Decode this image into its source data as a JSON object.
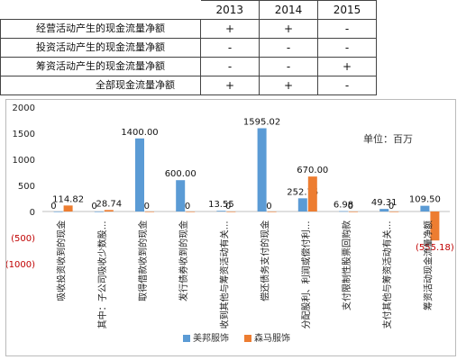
{
  "table": {
    "years": [
      "2013",
      "2014",
      "2015"
    ],
    "rows": [
      {
        "label": "经营活动产生的现金流量净额",
        "signs": [
          "+",
          "+",
          "-"
        ]
      },
      {
        "label": "投资活动产生的现金流量净额",
        "signs": [
          "-",
          "-",
          "-"
        ]
      },
      {
        "label": "筹资活动产生的现金流量净额",
        "signs": [
          "-",
          "-",
          "+"
        ]
      },
      {
        "label": "全部现金流量净额",
        "signs": [
          "+",
          "+",
          "-"
        ]
      }
    ]
  },
  "chart_data": {
    "type": "bar",
    "unit_note": "单位：百万",
    "categories": [
      "吸收投资收到的现金",
      "其中：子公司吸收少数股…",
      "取得借款收到的现金",
      "发行债券收到的现金",
      "收到其他与筹资活动有关…",
      "偿还债务支付的现金",
      "分配股利、利润或偿付利…",
      "支付限制性股票回购款",
      "支付其他与筹资活动有关…",
      "筹资活动现金流量净额"
    ],
    "series": [
      {
        "name": "美邦服饰",
        "color": "#5b9bd5",
        "values": [
          0,
          0,
          1400.0,
          600.0,
          13.55,
          1595.02,
          252.75,
          6.98,
          49.31,
          109.5
        ]
      },
      {
        "name": "森马服饰",
        "color": "#ed7d31",
        "values": [
          114.82,
          28.74,
          0,
          0,
          0,
          0,
          670.0,
          0,
          0,
          -555.18
        ]
      }
    ],
    "data_labels": {
      "美邦服饰": [
        "0",
        "0",
        "1400.00",
        "600.00",
        "13.55",
        "1595.02",
        "252.75",
        "6.98",
        "49.31",
        "109.50"
      ],
      "森马服饰": [
        "114.82",
        "28.74",
        "0",
        "0",
        "0",
        "0",
        "670.00",
        "0",
        "0",
        "(555.18)"
      ]
    },
    "yticks": [
      "(1000)",
      "(500)",
      "0",
      "500",
      "1000",
      "1500",
      "2000"
    ],
    "ytick_values": [
      -1000,
      -500,
      0,
      500,
      1000,
      1500,
      2000
    ],
    "ylim": [
      -1000,
      2000
    ],
    "legend": "bottom"
  }
}
